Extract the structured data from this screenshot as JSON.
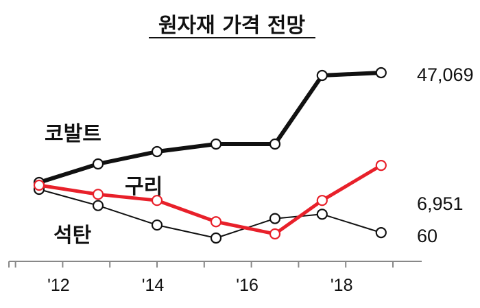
{
  "chart_data": {
    "type": "line",
    "title": "원자재 가격 전망",
    "x_tick_labels": [
      "'12",
      "'14",
      "'16",
      "'18"
    ],
    "x_ticks": [
      2012,
      2014,
      2016,
      2018
    ],
    "x": [
      2011.5,
      2012.75,
      2014,
      2015.25,
      2016.5,
      2017.5,
      2018.75
    ],
    "series": [
      {
        "name": "코발트",
        "values": [
          24500,
          27100,
          28700,
          29700,
          29700,
          46900,
          47069
        ],
        "end_label": "47,069",
        "color": "#111111"
      },
      {
        "name": "구리",
        "values": [
          6300,
          6000,
          5800,
          5100,
          4700,
          5800,
          6951
        ],
        "end_label": "6,951",
        "color": "#e8202a"
      },
      {
        "name": "석탄",
        "values": [
          100,
          85,
          67,
          55,
          73,
          77,
          60
        ],
        "end_label": "60",
        "color": "#111111"
      }
    ],
    "xlim": [
      2010.5,
      2019.5
    ],
    "grid": false
  }
}
